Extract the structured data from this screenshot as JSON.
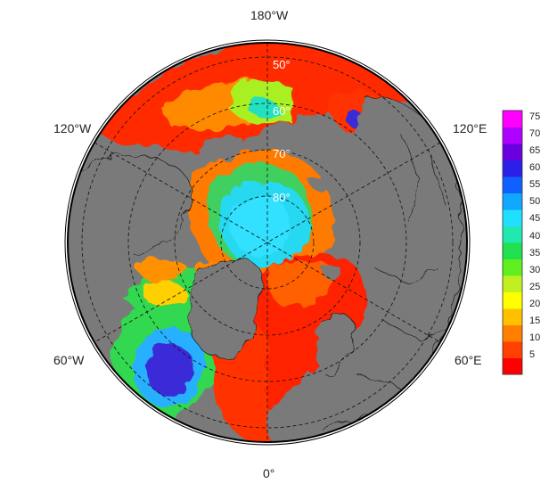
{
  "longitude_labels": {
    "top": "180°W",
    "bottom": "0°",
    "upper_left": "120°W",
    "upper_right": "120°E",
    "lower_left": "60°W",
    "lower_right": "60°E"
  },
  "latitude_labels": [
    "50°",
    "60°",
    "70°",
    "80°"
  ],
  "colorbar": {
    "ticks": [
      "75",
      "70",
      "65",
      "60",
      "55",
      "50",
      "45",
      "40",
      "35",
      "30",
      "25",
      "20",
      "15",
      "10",
      "5"
    ],
    "colors": [
      "#ff00ff",
      "#b000ff",
      "#6a00e0",
      "#2a20e8",
      "#1060ff",
      "#10a8ff",
      "#20e0ff",
      "#20e8b0",
      "#20e050",
      "#60f020",
      "#c0f020",
      "#ffff00",
      "#ffc000",
      "#ff8000",
      "#ff4000",
      "#ff0000"
    ]
  },
  "colors": {
    "land": "#7a7a7a",
    "background": "#ffffff"
  }
}
